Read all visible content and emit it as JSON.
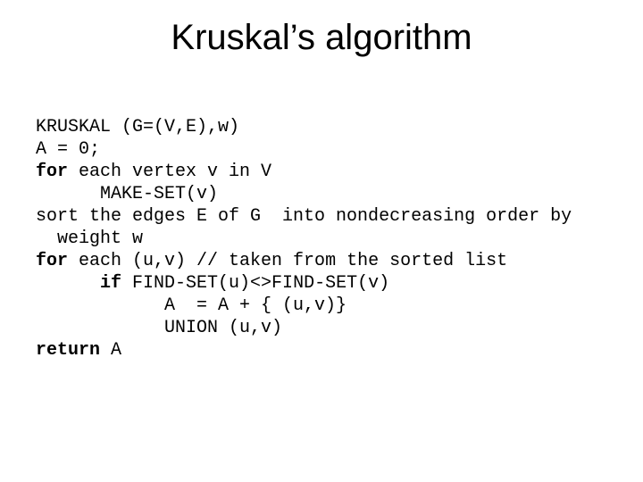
{
  "title": "Kruskal’s algorithm",
  "code": {
    "l1_a": "KRUSKAL (G=(V,E),w)",
    "l2_a": "A = 0;",
    "l3_kw": "for",
    "l3_b": " each vertex v in V",
    "l4_a": "      MAKE-SET(v)",
    "l5_a": "sort the edges E of G  into nondecreasing order by",
    "l6_a": "  weight w",
    "l7_kw": "for",
    "l7_b": " each (u,v) // taken from the sorted list",
    "l8_pad": "      ",
    "l8_kw": "if",
    "l8_b": " FIND-SET(u)<>FIND-SET(v)",
    "l9_a": "            A  = A + { (u,v)}",
    "l10_a": "            UNION (u,v)",
    "l11_kw": "return",
    "l11_b": " A"
  },
  "style": {
    "background_color": "#ffffff",
    "text_color": "#000000",
    "title_fontsize": 40,
    "code_fontsize": 20,
    "code_font": "Courier New",
    "title_font": "Arial"
  }
}
